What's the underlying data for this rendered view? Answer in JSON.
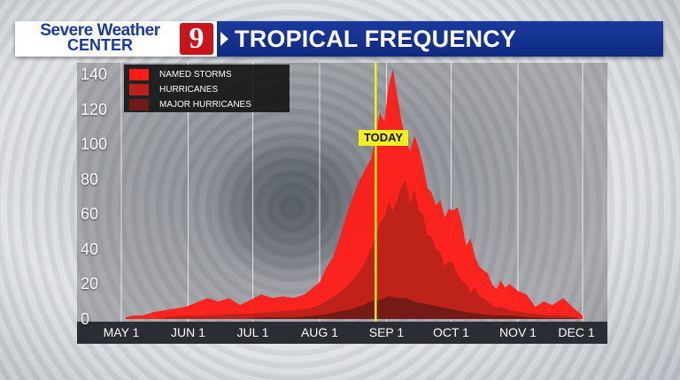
{
  "header": {
    "brand_line1": "Severe Weather",
    "brand_line2": "CENTER",
    "channel_number": "9",
    "title": "TROPICAL FREQUENCY"
  },
  "colors": {
    "named_storms": "#ff1c16",
    "hurricanes": "#b8221a",
    "major_hurricanes": "#6e1a16",
    "today_line": "#f4ee1c",
    "header_blue": "#1a3a9e"
  },
  "chart_data": {
    "type": "area",
    "title": "TROPICAL FREQUENCY",
    "xlabel": "",
    "ylabel": "",
    "ylim": [
      0,
      140
    ],
    "yticks": [
      "140",
      "120",
      "100",
      "80",
      "60",
      "40",
      "20",
      "0"
    ],
    "ytick_values": [
      140,
      120,
      100,
      80,
      60,
      40,
      20,
      0
    ],
    "xticks": [
      "MAY 1",
      "JUN 1",
      "JUL 1",
      "AUG 1",
      "SEP 1",
      "OCT 1",
      "NOV 1",
      "DEC 1"
    ],
    "xtick_days": [
      0,
      31,
      61,
      92,
      123,
      153,
      184,
      214
    ],
    "x_domain_days": [
      0,
      214
    ],
    "grid": "vertical",
    "legend": "top-left",
    "today_label": "TODAY",
    "today_day": 118,
    "series": [
      {
        "name": "NAMED STORMS",
        "x": [
          2,
          6,
          10,
          15,
          20,
          25,
          30,
          36,
          40,
          45,
          50,
          55,
          60,
          65,
          70,
          75,
          80,
          85,
          88,
          92,
          95,
          98,
          101,
          104,
          107,
          110,
          113,
          116,
          118,
          120,
          122,
          124,
          126,
          128,
          130,
          132,
          134,
          136,
          138,
          140,
          142,
          144,
          146,
          148,
          150,
          152,
          154,
          156,
          158,
          160,
          162,
          164,
          166,
          168,
          170,
          172,
          174,
          176,
          178,
          180,
          184,
          188,
          192,
          196,
          200,
          205,
          210,
          214
        ],
        "y": [
          1,
          2,
          2,
          4,
          5,
          6,
          7,
          10,
          12,
          10,
          12,
          8,
          11,
          14,
          12,
          13,
          12,
          14,
          17,
          21,
          29,
          35,
          45,
          58,
          68,
          78,
          85,
          92,
          105,
          118,
          113,
          133,
          143,
          128,
          113,
          102,
          96,
          105,
          98,
          88,
          75,
          72,
          65,
          68,
          58,
          63,
          62,
          64,
          55,
          42,
          46,
          36,
          30,
          28,
          26,
          20,
          17,
          22,
          18,
          20,
          16,
          14,
          7,
          10,
          8,
          12,
          6,
          2
        ]
      },
      {
        "name": "HURRICANES",
        "x": [
          20,
          30,
          40,
          50,
          60,
          70,
          80,
          88,
          92,
          96,
          100,
          104,
          108,
          112,
          116,
          118,
          120,
          122,
          124,
          126,
          128,
          130,
          132,
          134,
          136,
          138,
          140,
          142,
          144,
          146,
          148,
          150,
          152,
          154,
          156,
          158,
          160,
          162,
          164,
          166,
          168,
          170,
          172,
          174,
          176,
          180,
          186,
          192,
          198,
          205,
          212
        ],
        "y": [
          1,
          2,
          2,
          3,
          3,
          4,
          5,
          6,
          8,
          11,
          14,
          18,
          23,
          30,
          40,
          47,
          55,
          58,
          67,
          62,
          68,
          76,
          79,
          66,
          74,
          62,
          60,
          48,
          47,
          40,
          38,
          30,
          33,
          32,
          25,
          22,
          20,
          15,
          18,
          13,
          12,
          10,
          8,
          6,
          7,
          5,
          4,
          3,
          2,
          2,
          1
        ]
      },
      {
        "name": "MAJOR HURRICANES",
        "x": [
          60,
          70,
          80,
          90,
          96,
          100,
          104,
          108,
          112,
          116,
          120,
          124,
          128,
          132,
          136,
          140,
          144,
          148,
          152,
          156,
          160,
          166,
          172,
          180,
          190,
          200,
          210
        ],
        "y": [
          0.5,
          1,
          1,
          2,
          3,
          4,
          5,
          6,
          8,
          10,
          11,
          13,
          12,
          12,
          10,
          9,
          8,
          7,
          6,
          5,
          4,
          3,
          2,
          2,
          1,
          0.5,
          0.5
        ]
      }
    ]
  }
}
